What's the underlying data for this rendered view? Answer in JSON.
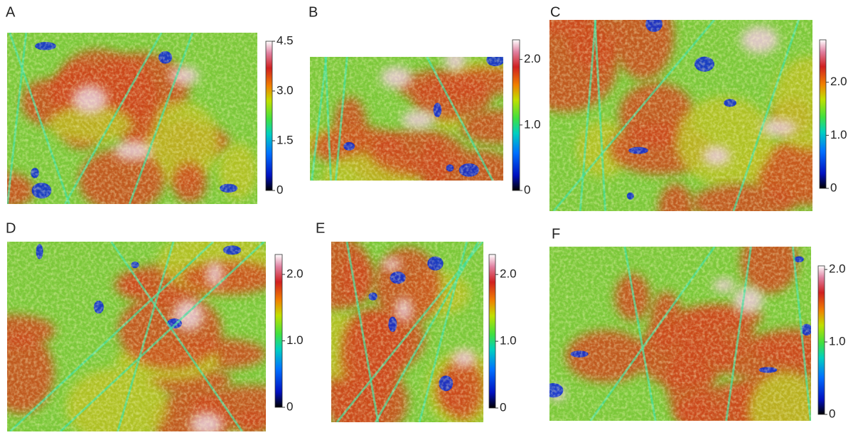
{
  "chart_data": [
    {
      "type": "heatmap",
      "title": "A",
      "clim": [
        0,
        4.5
      ],
      "cticks": [
        0,
        1.5,
        {
          "value": 3,
          "label": "3.0"
        },
        4.5
      ]
    },
    {
      "type": "heatmap",
      "title": "B",
      "clim": [
        0,
        2.3
      ],
      "cticks": [
        0,
        {
          "value": 1,
          "label": "1.0"
        },
        {
          "value": 2,
          "label": "2.0"
        }
      ]
    },
    {
      "type": "heatmap",
      "title": "C",
      "clim": [
        0,
        2.8
      ],
      "cticks": [
        0,
        {
          "value": 1,
          "label": "1.0"
        },
        {
          "value": 2,
          "label": "2.0"
        }
      ]
    },
    {
      "type": "heatmap",
      "title": "D",
      "clim": [
        0,
        2.3
      ],
      "cticks": [
        0,
        {
          "value": 1,
          "label": "1.0"
        },
        {
          "value": 2,
          "label": "2.0"
        }
      ]
    },
    {
      "type": "heatmap",
      "title": "E",
      "clim": [
        0,
        2.3
      ],
      "cticks": [
        0,
        {
          "value": 1,
          "label": "1.0"
        },
        {
          "value": 2,
          "label": "2.0"
        }
      ]
    },
    {
      "type": "heatmap",
      "title": "F",
      "clim": [
        0,
        2.05
      ],
      "cticks": [
        0,
        {
          "value": 1,
          "label": "1.0"
        },
        {
          "value": 2,
          "label": "2.0"
        }
      ]
    }
  ]
}
